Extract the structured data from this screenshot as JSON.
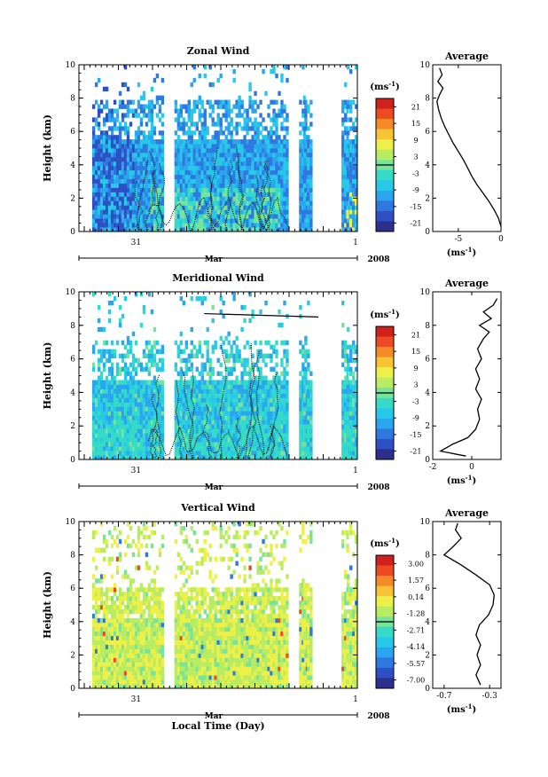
{
  "figure": {
    "colorscale": [
      "#2d2f8c",
      "#2f4fc4",
      "#2f78e0",
      "#2aa6ee",
      "#28c9e8",
      "#35dbc6",
      "#78e39a",
      "#b8ec62",
      "#eef04a",
      "#f8c436",
      "#f58a28",
      "#ec4a22",
      "#d0211c"
    ],
    "xlabel": "Local Time (Day)",
    "month_label": "Mar",
    "year_label": "2008",
    "x_ticks": [
      "31",
      "1"
    ]
  },
  "chart_data": [
    {
      "type": "heatmap",
      "title": "Zonal Wind",
      "ylabel": "Height (km)",
      "ylim": [
        0,
        10
      ],
      "yticks": [
        "0",
        "2",
        "4",
        "6",
        "8",
        "10"
      ],
      "colorbar": {
        "unit_label": "(ms",
        "unit_exp": "-1",
        "unit_close": ")",
        "ticks": [
          "21",
          "15",
          "9",
          "3",
          "-3",
          "-9",
          "-15",
          "-21"
        ],
        "range": [
          -24,
          24
        ]
      },
      "profile": {
        "title": "Average",
        "xlabel": "(ms",
        "xlabel_exp": "-1",
        "xlabel_close": ")",
        "xlim": [
          -8,
          0
        ],
        "xticks": [
          "-5",
          "0"
        ],
        "xtick_values": [
          -5,
          0
        ],
        "points": [
          [
            0,
            0.3
          ],
          [
            -0.3,
            0.8
          ],
          [
            -0.8,
            1.3
          ],
          [
            -1.4,
            1.8
          ],
          [
            -2.1,
            2.3
          ],
          [
            -2.8,
            2.8
          ],
          [
            -3.4,
            3.3
          ],
          [
            -3.9,
            3.8
          ],
          [
            -4.4,
            4.3
          ],
          [
            -5.0,
            4.8
          ],
          [
            -5.6,
            5.3
          ],
          [
            -6.1,
            5.8
          ],
          [
            -6.6,
            6.3
          ],
          [
            -7.0,
            6.8
          ],
          [
            -7.3,
            7.3
          ],
          [
            -7.5,
            7.8
          ],
          [
            -7.2,
            8.2
          ],
          [
            -6.8,
            8.6
          ],
          [
            -7.4,
            9.0
          ],
          [
            -6.9,
            9.4
          ],
          [
            -7.2,
            9.8
          ]
        ]
      }
    },
    {
      "type": "heatmap",
      "title": "Meridional Wind",
      "ylabel": "Height (km)",
      "ylim": [
        0,
        10
      ],
      "yticks": [
        "0",
        "2",
        "4",
        "6",
        "8",
        "10"
      ],
      "colorbar": {
        "unit_label": "(ms",
        "unit_exp": "-1",
        "unit_close": ")",
        "ticks": [
          "21",
          "15",
          "9",
          "3",
          "-3",
          "-9",
          "-15",
          "-21"
        ],
        "range": [
          -24,
          24
        ]
      },
      "profile": {
        "title": "Average",
        "xlabel": "(ms",
        "xlabel_exp": "-1",
        "xlabel_close": ")",
        "xlim": [
          -2,
          1.5
        ],
        "xticks": [
          "-2",
          "0"
        ],
        "xtick_values": [
          -2,
          0
        ],
        "points": [
          [
            -0.3,
            0.2
          ],
          [
            -1.6,
            0.5
          ],
          [
            -1.0,
            0.9
          ],
          [
            -0.2,
            1.3
          ],
          [
            0.2,
            1.8
          ],
          [
            0.4,
            2.4
          ],
          [
            0.3,
            3.0
          ],
          [
            0.5,
            3.6
          ],
          [
            0.2,
            4.2
          ],
          [
            0.4,
            4.8
          ],
          [
            0.2,
            5.4
          ],
          [
            0.5,
            6.0
          ],
          [
            0.3,
            6.6
          ],
          [
            0.6,
            7.2
          ],
          [
            0.9,
            7.6
          ],
          [
            0.4,
            8.0
          ],
          [
            1.0,
            8.4
          ],
          [
            0.6,
            8.8
          ],
          [
            1.1,
            9.2
          ],
          [
            1.3,
            9.6
          ]
        ]
      }
    },
    {
      "type": "heatmap",
      "title": "Vertical Wind",
      "ylabel": "Height (km)",
      "ylim": [
        0,
        10
      ],
      "yticks": [
        "0",
        "2",
        "4",
        "6",
        "8",
        "10"
      ],
      "colorbar": {
        "unit_label": "(ms",
        "unit_exp": "-1",
        "unit_close": ")",
        "ticks": [
          "3.00",
          "1.57",
          "0.14",
          "-1.28",
          "-2.71",
          "-4.14",
          "-5.57",
          "-7.00"
        ],
        "range": [
          -8,
          4
        ]
      },
      "profile": {
        "title": "Average",
        "xlabel": "(ms",
        "xlabel_exp": "-1",
        "xlabel_close": ")",
        "xlim": [
          -0.8,
          -0.2
        ],
        "xticks": [
          "-0.7",
          "-0.3"
        ],
        "xtick_values": [
          -0.7,
          -0.3
        ],
        "points": [
          [
            -0.38,
            0.2
          ],
          [
            -0.42,
            0.8
          ],
          [
            -0.38,
            1.4
          ],
          [
            -0.41,
            2.0
          ],
          [
            -0.38,
            2.6
          ],
          [
            -0.42,
            3.2
          ],
          [
            -0.39,
            3.8
          ],
          [
            -0.31,
            4.4
          ],
          [
            -0.27,
            5.0
          ],
          [
            -0.26,
            5.6
          ],
          [
            -0.3,
            6.2
          ],
          [
            -0.42,
            6.8
          ],
          [
            -0.55,
            7.4
          ],
          [
            -0.7,
            8.0
          ],
          [
            -0.62,
            8.5
          ],
          [
            -0.55,
            9.0
          ],
          [
            -0.6,
            9.5
          ],
          [
            -0.58,
            9.9
          ]
        ]
      }
    }
  ]
}
